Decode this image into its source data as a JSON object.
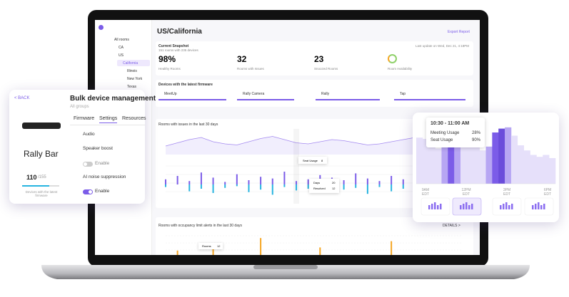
{
  "screen": {
    "sidebar": [
      "All rooms",
      "CA",
      "US",
      "California",
      "Illinois",
      "New York",
      "Texas"
    ],
    "title": "US/California",
    "export": "Export Report",
    "snapshot": {
      "title": "Current Snapshot",
      "subtitle": "151 rooms with 235 devices",
      "updated": "Last update on Wed, Dec 21, 4:18PM",
      "stats": [
        {
          "value": "98%",
          "label": "Healthy Rooms"
        },
        {
          "value": "32",
          "label": "Rooms with Issues"
        },
        {
          "value": "23",
          "label": "Snoozed Rooms"
        },
        {
          "label": "Room Availability"
        }
      ]
    },
    "firmware": {
      "title": "Devices with the latest firmware",
      "devices": [
        "MeetUp",
        "Rally Camera",
        "Rally",
        "Tap"
      ]
    },
    "issues": {
      "title": "Rooms with issues in the last 30 days",
      "tooltip": {
        "label": "Seat Usage",
        "value": "8"
      },
      "tooltip2": [
        {
          "label": "Days",
          "value": "20"
        },
        {
          "label": "Resolved",
          "value": "12"
        }
      ],
      "line": [
        40,
        55,
        70,
        80,
        60,
        50,
        45,
        60,
        75,
        85,
        70,
        55,
        50,
        60,
        70,
        65,
        55,
        45,
        50,
        60,
        70,
        80,
        75,
        60,
        55,
        50
      ],
      "issues": [
        6,
        10,
        4,
        14,
        8,
        3,
        12,
        5,
        9,
        7,
        15,
        4,
        6,
        11,
        8,
        5,
        13,
        7,
        4,
        10,
        6,
        9,
        12,
        5,
        8,
        7
      ],
      "resolved": [
        3,
        0,
        8,
        5,
        10,
        4,
        2,
        9,
        6,
        12,
        3,
        7,
        5,
        2,
        10,
        6,
        4,
        11,
        3,
        8,
        5,
        2,
        7,
        9,
        4,
        6
      ],
      "line_color": "#a48af0",
      "issues_color": "#7b5ce8",
      "resolved_color": "#27b4e0"
    },
    "occupancy": {
      "title": "Rooms with occupancy limit alerts in the last 30 days",
      "details": "DETAILS >",
      "tooltip": {
        "label": "Rooms",
        "value": "12"
      },
      "values": [
        0,
        6,
        0,
        0,
        10,
        0,
        0,
        0,
        14,
        0,
        0,
        0,
        0,
        8,
        0,
        0,
        0,
        0,
        0,
        12,
        0,
        0,
        0,
        0,
        0,
        0
      ],
      "color": "#f5a623"
    }
  },
  "bulk_card": {
    "back": "< BACK",
    "title": "Bulk device management",
    "subtitle": "All groups",
    "tabs": [
      "Firmware",
      "Settings",
      "Resources"
    ],
    "device": "Rally Bar",
    "count": "110",
    "total": "/155",
    "count_label": "Devices with the latest firmware",
    "section": "Audio",
    "settings": [
      {
        "name": "Speaker boost",
        "toggle": "Enable"
      },
      {
        "name": "AI noise suppression",
        "toggle": "Enable"
      }
    ]
  },
  "usage_card": {
    "tooltip": {
      "time": "10:30 - 11:00 AM",
      "rows": [
        {
          "label": "Meeting Usage",
          "value": "28%"
        },
        {
          "label": "Seat Usage",
          "value": "90%"
        }
      ]
    },
    "values": [
      72,
      70,
      62,
      55,
      60,
      68,
      72,
      74,
      70,
      60,
      52,
      58,
      80,
      86,
      88,
      75,
      60,
      52,
      45,
      42,
      45,
      40
    ],
    "colors": [
      "#e6e0fa",
      "#e6e0fa",
      "#e6e0fa",
      "#e6e0fa",
      "#b7a6f3",
      "#7b5ce8",
      "#b7a6f3",
      "#e6e0fa",
      "#e6e0fa",
      "#e6e0fa",
      "#e6e0fa",
      "#b7a6f3",
      "#7b5ce8",
      "#6a4cdb",
      "#b7a6f3",
      "#e6e0fa",
      "#e6e0fa",
      "#e6e0fa",
      "#e6e0fa",
      "#e6e0fa",
      "#e6e0fa",
      "#e6e0fa"
    ],
    "x_labels": [
      {
        "time": "9AM",
        "zone": "EDT"
      },
      {
        "time": "12PM",
        "zone": "EDT"
      },
      {
        "time": "3PM",
        "zone": "EDT"
      },
      {
        "time": "6PM",
        "zone": "EDT"
      }
    ]
  }
}
